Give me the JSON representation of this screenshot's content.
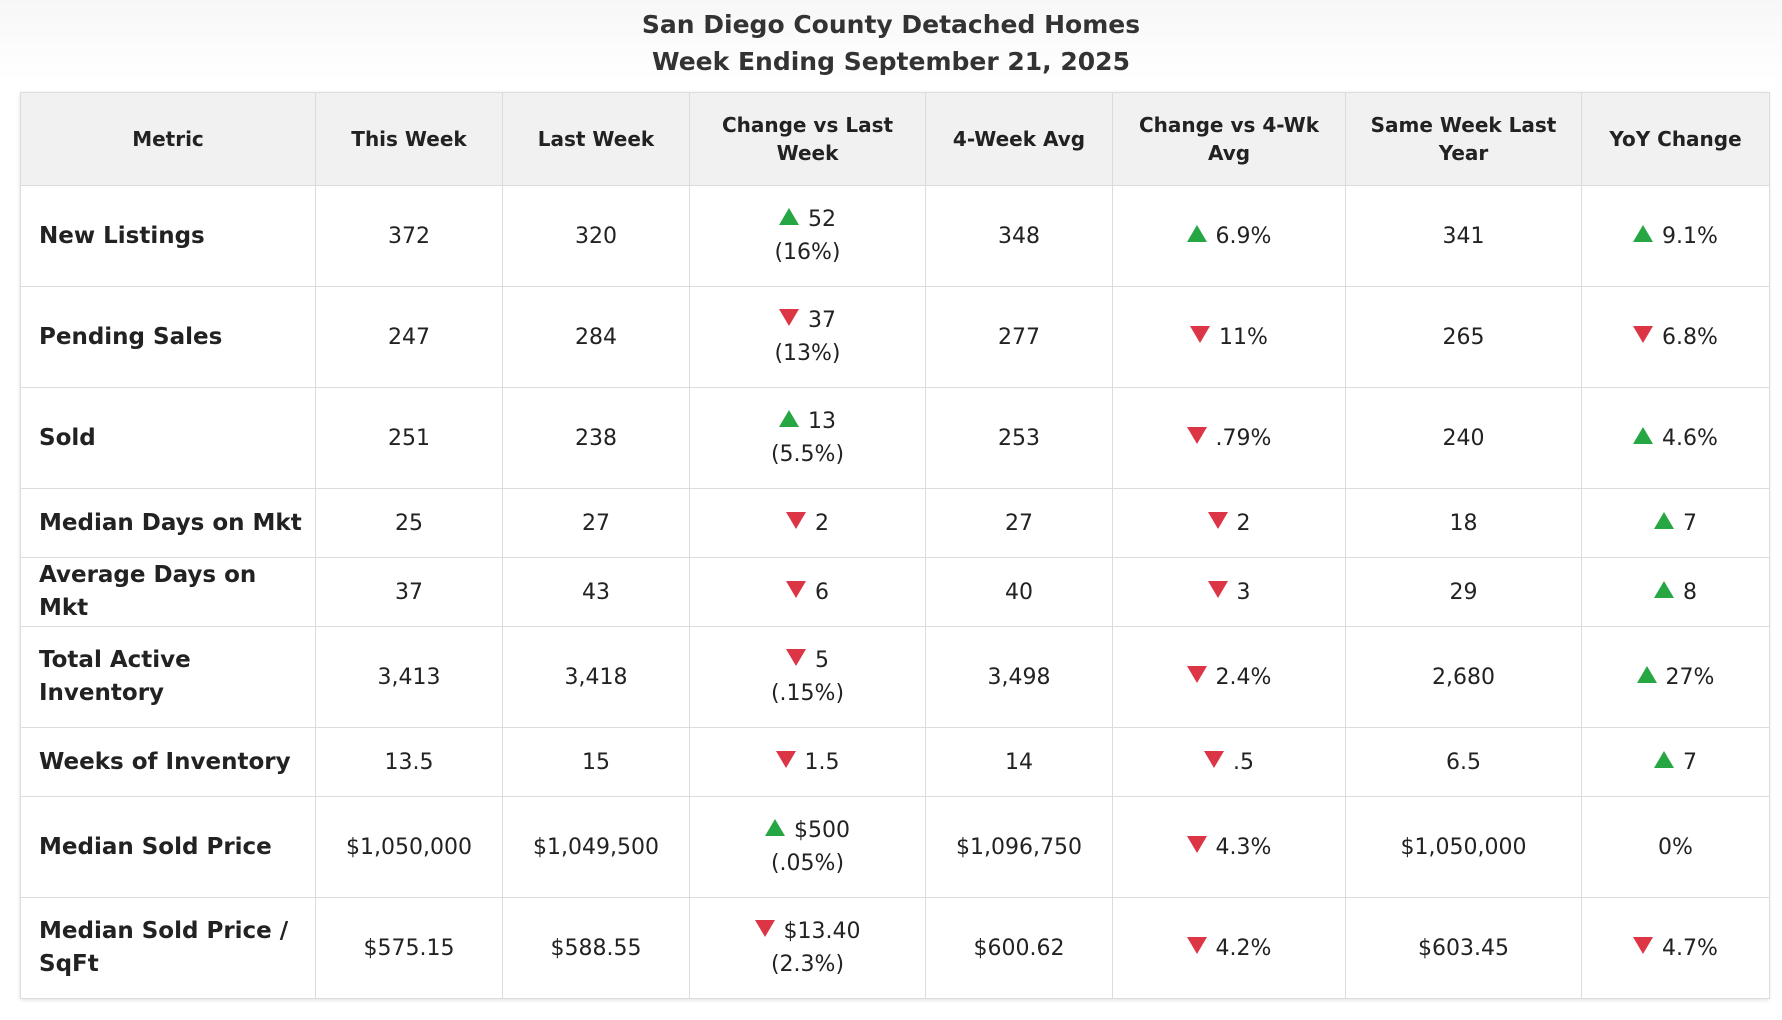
{
  "chart_data": {
    "type": "table",
    "title": "San Diego County Detached Homes",
    "subtitle": "Week Ending September 21, 2025",
    "columns": [
      "Metric",
      "This Week",
      "Last Week",
      "Change vs Last Week",
      "4-Week Avg",
      "Change vs 4-Wk Avg",
      "Same Week Last Year",
      "YoY Change"
    ],
    "colors": {
      "up": "#27a744",
      "down": "#dc3545"
    },
    "rows": [
      {
        "metric": "New Listings",
        "this_week": "372",
        "last_week": "320",
        "chg_wk": {
          "dir": "up",
          "value": "52",
          "pct": "(16%)"
        },
        "avg4": "348",
        "chg_avg": {
          "dir": "up",
          "value": "6.9%"
        },
        "last_year": "341",
        "yoy": {
          "dir": "up",
          "value": "9.1%"
        }
      },
      {
        "metric": "Pending Sales",
        "this_week": "247",
        "last_week": "284",
        "chg_wk": {
          "dir": "down",
          "value": "37",
          "pct": "(13%)"
        },
        "avg4": "277",
        "chg_avg": {
          "dir": "down",
          "value": "11%"
        },
        "last_year": "265",
        "yoy": {
          "dir": "down",
          "value": "6.8%"
        }
      },
      {
        "metric": "Sold",
        "this_week": "251",
        "last_week": "238",
        "chg_wk": {
          "dir": "up",
          "value": "13",
          "pct": "(5.5%)"
        },
        "avg4": "253",
        "chg_avg": {
          "dir": "down",
          "value": ".79%"
        },
        "last_year": "240",
        "yoy": {
          "dir": "up",
          "value": "4.6%"
        }
      },
      {
        "metric": "Median Days on Mkt",
        "this_week": "25",
        "last_week": "27",
        "chg_wk": {
          "dir": "down",
          "value": "2",
          "pct": ""
        },
        "avg4": "27",
        "chg_avg": {
          "dir": "down",
          "value": "2"
        },
        "last_year": "18",
        "yoy": {
          "dir": "up",
          "value": "7"
        }
      },
      {
        "metric": "Average Days on Mkt",
        "this_week": "37",
        "last_week": "43",
        "chg_wk": {
          "dir": "down",
          "value": "6",
          "pct": ""
        },
        "avg4": "40",
        "chg_avg": {
          "dir": "down",
          "value": "3"
        },
        "last_year": "29",
        "yoy": {
          "dir": "up",
          "value": "8"
        }
      },
      {
        "metric": "Total Active Inventory",
        "this_week": "3,413",
        "last_week": "3,418",
        "chg_wk": {
          "dir": "down",
          "value": "5",
          "pct": "(.15%)"
        },
        "avg4": "3,498",
        "chg_avg": {
          "dir": "down",
          "value": "2.4%"
        },
        "last_year": "2,680",
        "yoy": {
          "dir": "up",
          "value": "27%"
        }
      },
      {
        "metric": "Weeks of Inventory",
        "this_week": "13.5",
        "last_week": "15",
        "chg_wk": {
          "dir": "down",
          "value": "1.5",
          "pct": ""
        },
        "avg4": "14",
        "chg_avg": {
          "dir": "down",
          "value": ".5"
        },
        "last_year": "6.5",
        "yoy": {
          "dir": "up",
          "value": "7"
        }
      },
      {
        "metric": "Median Sold Price",
        "this_week": "$1,050,000",
        "last_week": "$1,049,500",
        "chg_wk": {
          "dir": "up",
          "value": "$500",
          "pct": "(.05%)"
        },
        "avg4": "$1,096,750",
        "chg_avg": {
          "dir": "down",
          "value": "4.3%"
        },
        "last_year": "$1,050,000",
        "yoy": {
          "dir": "none",
          "value": "0%"
        }
      },
      {
        "metric": "Median Sold Price / SqFt",
        "this_week": "$575.15",
        "last_week": "$588.55",
        "chg_wk": {
          "dir": "down",
          "value": "$13.40",
          "pct": "(2.3%)"
        },
        "avg4": "$600.62",
        "chg_avg": {
          "dir": "down",
          "value": "4.2%"
        },
        "last_year": "$603.45",
        "yoy": {
          "dir": "down",
          "value": "4.7%"
        }
      }
    ]
  }
}
